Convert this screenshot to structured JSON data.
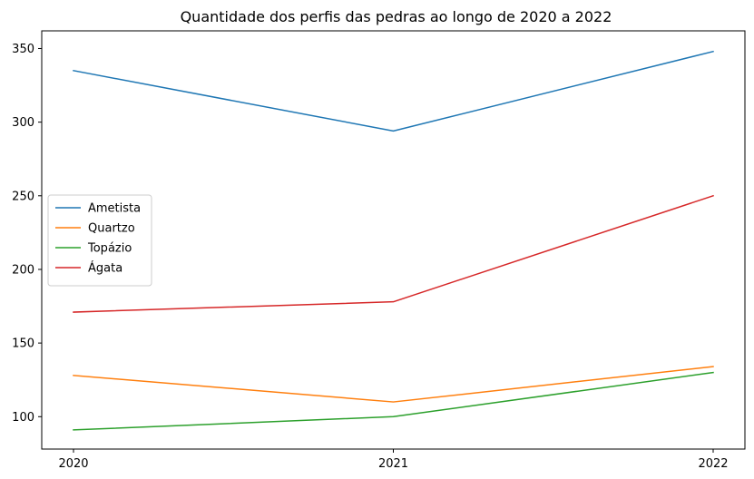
{
  "chart_data": {
    "type": "line",
    "title": "Quantidade dos perfis das pedras ao longo de 2020 a 2022",
    "xlabel": "",
    "ylabel": "",
    "x": [
      "2020",
      "2021",
      "2022"
    ],
    "ylim": [
      78,
      362
    ],
    "yticks": [
      100,
      150,
      200,
      250,
      300,
      350
    ],
    "grid": false,
    "legend_position": "center-left",
    "series": [
      {
        "name": "Ametista",
        "color": "#1f77b4",
        "values": [
          335,
          294,
          348
        ]
      },
      {
        "name": "Quartzo",
        "color": "#ff7f0e",
        "values": [
          128,
          110,
          134
        ]
      },
      {
        "name": "Topázio",
        "color": "#2ca02c",
        "values": [
          91,
          100,
          130
        ]
      },
      {
        "name": "Ágata",
        "color": "#d62728",
        "values": [
          171,
          178,
          250
        ]
      }
    ]
  }
}
